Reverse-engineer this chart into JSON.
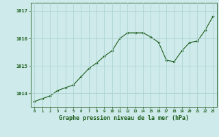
{
  "hours": [
    0,
    1,
    2,
    3,
    4,
    5,
    6,
    7,
    8,
    9,
    10,
    11,
    12,
    13,
    14,
    15,
    16,
    17,
    18,
    19,
    20,
    21,
    22,
    23
  ],
  "pressure": [
    1013.7,
    1013.8,
    1013.9,
    1014.1,
    1014.2,
    1014.3,
    1014.6,
    1014.9,
    1015.1,
    1015.35,
    1015.55,
    1016.0,
    1016.2,
    1016.2,
    1016.2,
    1016.05,
    1015.85,
    1015.2,
    1015.15,
    1015.55,
    1015.85,
    1015.9,
    1016.3,
    1016.8
  ],
  "line_color": "#1a5c1a",
  "marker": "D",
  "marker_size": 1.8,
  "bg_color": "#ceeaea",
  "grid_color": "#aed4d4",
  "xlabel": "Graphe pression niveau de la mer (hPa)",
  "xlabel_fontsize": 6.0,
  "ylabel_ticks": [
    1014,
    1015,
    1016,
    1017
  ],
  "ylim": [
    1013.5,
    1017.3
  ],
  "xlim": [
    -0.5,
    23.5
  ],
  "tick_label_color": "#1a5c1a",
  "axis_color": "#336633"
}
